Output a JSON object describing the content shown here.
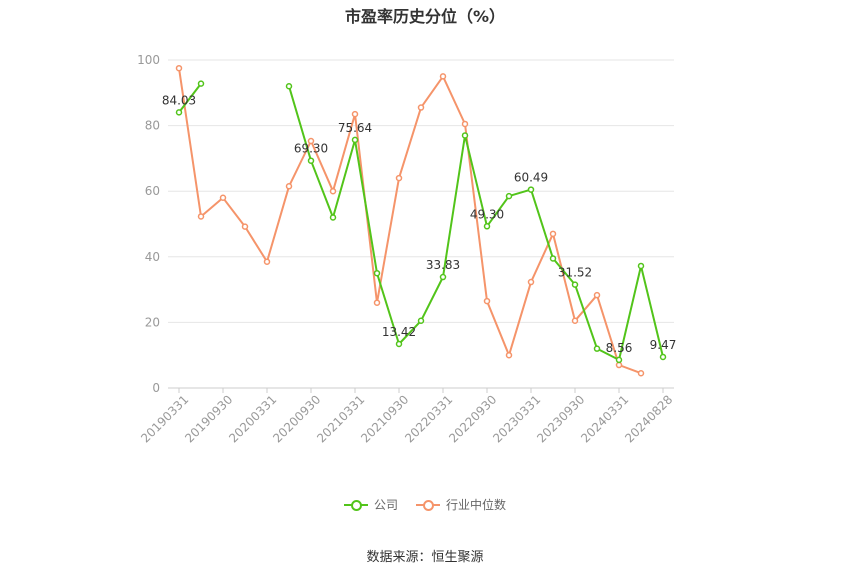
{
  "chart_data": {
    "type": "line",
    "title": "市盈率历史分位（%）",
    "ylim": [
      0,
      100
    ],
    "y_ticks": [
      0,
      20,
      40,
      60,
      80,
      100
    ],
    "x_tick_labels": [
      "20190331",
      "20190930",
      "20200331",
      "20200930",
      "20210331",
      "20210930",
      "20220331",
      "20220930",
      "20230331",
      "20230930",
      "20240331",
      "20240828"
    ],
    "grid": true,
    "legend_position": "bottom",
    "series": [
      {
        "name": "公司",
        "color": "#52c41a",
        "points": [
          [
            0,
            84.03
          ],
          [
            1,
            92.8
          ],
          [
            5,
            92.0
          ],
          [
            6,
            69.3
          ],
          [
            7,
            52.0
          ],
          [
            8,
            75.64
          ],
          [
            9,
            35.0
          ],
          [
            10,
            13.42
          ],
          [
            11,
            20.5
          ],
          [
            12,
            33.83
          ],
          [
            13,
            77.0
          ],
          [
            14,
            49.3
          ],
          [
            15,
            58.5
          ],
          [
            16,
            60.49
          ],
          [
            17,
            39.5
          ],
          [
            18,
            31.52
          ],
          [
            19,
            12.0
          ],
          [
            20,
            8.56
          ],
          [
            21,
            37.2
          ],
          [
            22,
            9.47
          ]
        ],
        "labels": [
          {
            "x": 0,
            "y": 84.03,
            "text": "84.03"
          },
          {
            "x": 6,
            "y": 69.3,
            "text": "69.30"
          },
          {
            "x": 8,
            "y": 75.64,
            "text": "75.64"
          },
          {
            "x": 10,
            "y": 13.42,
            "text": "13.42"
          },
          {
            "x": 12,
            "y": 33.83,
            "text": "33.83"
          },
          {
            "x": 14,
            "y": 49.3,
            "text": "49.30"
          },
          {
            "x": 16,
            "y": 60.49,
            "text": "60.49"
          },
          {
            "x": 18,
            "y": 31.52,
            "text": "31.52"
          },
          {
            "x": 20,
            "y": 8.56,
            "text": "8.56"
          },
          {
            "x": 22,
            "y": 9.47,
            "text": "9.47"
          }
        ]
      },
      {
        "name": "行业中位数",
        "color": "#f5946a",
        "points": [
          [
            0,
            97.5
          ],
          [
            1,
            52.3
          ],
          [
            2,
            58.0
          ],
          [
            3,
            49.2
          ],
          [
            4,
            38.5
          ],
          [
            5,
            61.5
          ],
          [
            6,
            75.3
          ],
          [
            7,
            60.0
          ],
          [
            8,
            83.5
          ],
          [
            9,
            26.0
          ],
          [
            10,
            64.0
          ],
          [
            11,
            85.5
          ],
          [
            12,
            95.0
          ],
          [
            13,
            80.5
          ],
          [
            14,
            26.5
          ],
          [
            15,
            10.0
          ],
          [
            16,
            32.3
          ],
          [
            17,
            47.0
          ],
          [
            18,
            20.5
          ],
          [
            19,
            28.3
          ],
          [
            20,
            7.0
          ],
          [
            21,
            4.5
          ]
        ]
      }
    ]
  },
  "footer": {
    "source": "数据来源：恒生聚源"
  }
}
